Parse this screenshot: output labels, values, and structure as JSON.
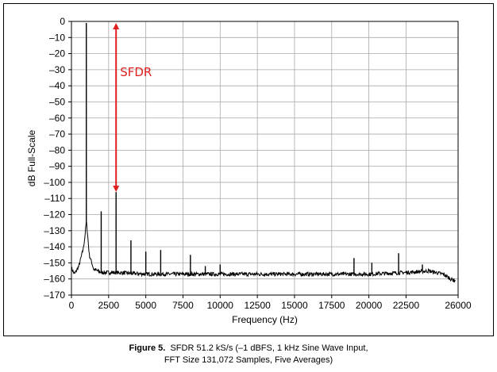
{
  "chart_data": {
    "type": "line",
    "xlabel": "Frequency (Hz)",
    "ylabel": "dB Full-Scale",
    "xlim": [
      0,
      26000
    ],
    "ylim": [
      -170,
      0
    ],
    "xticks": [
      0,
      2500,
      5000,
      7500,
      10000,
      12500,
      15000,
      17500,
      20000,
      22500,
      26000
    ],
    "xtick_labels": [
      "0",
      "2500",
      "5000",
      "7500",
      "10000",
      "12500",
      "15000",
      "17500",
      "20000",
      "22500",
      "26000"
    ],
    "yticks": [
      0,
      -10,
      -20,
      -30,
      -40,
      -50,
      -60,
      -70,
      -80,
      -90,
      -100,
      -110,
      -120,
      -130,
      -140,
      -150,
      -160,
      -170
    ],
    "ytick_labels": [
      "0",
      "–10",
      "–20",
      "–30",
      "–40",
      "–50",
      "–60",
      "–70",
      "–80",
      "–90",
      "–100",
      "–110",
      "–120",
      "–130",
      "–140",
      "–150",
      "–160",
      "–170"
    ],
    "grid": true,
    "noise_floor": {
      "x": [
        0,
        200,
        500,
        800,
        900,
        1000,
        1100,
        1200,
        1500,
        2000,
        3000,
        5000,
        10000,
        15000,
        20000,
        22500,
        24000,
        25000,
        25500,
        25800
      ],
      "y": [
        -153,
        -157,
        -152,
        -141,
        -134,
        -124,
        -134,
        -145,
        -154,
        -156,
        -156,
        -157,
        -157,
        -157,
        -157,
        -156,
        -155,
        -157,
        -160,
        -161
      ]
    },
    "spurs": [
      {
        "x": 1000,
        "y": -1
      },
      {
        "x": 2000,
        "y": -118
      },
      {
        "x": 3000,
        "y": -106
      },
      {
        "x": 4000,
        "y": -136
      },
      {
        "x": 5000,
        "y": -143
      },
      {
        "x": 6000,
        "y": -142
      },
      {
        "x": 8000,
        "y": -145
      },
      {
        "x": 9000,
        "y": -152
      },
      {
        "x": 10000,
        "y": -151
      },
      {
        "x": 19000,
        "y": -147
      },
      {
        "x": 20200,
        "y": -150
      },
      {
        "x": 22000,
        "y": -144
      },
      {
        "x": 23600,
        "y": -151
      }
    ],
    "annotation": {
      "text": "SFDR",
      "x": 3000,
      "y_top": -1,
      "y_bottom": -106,
      "color": "#e02020"
    }
  },
  "caption": {
    "figure_label": "Figure 5.",
    "line1": "SFDR 51.2 kS/s (–1 dBFS, 1 kHz Sine Wave Input,",
    "line2": "FFT Size 131,072 Samples, Five Averages)"
  }
}
